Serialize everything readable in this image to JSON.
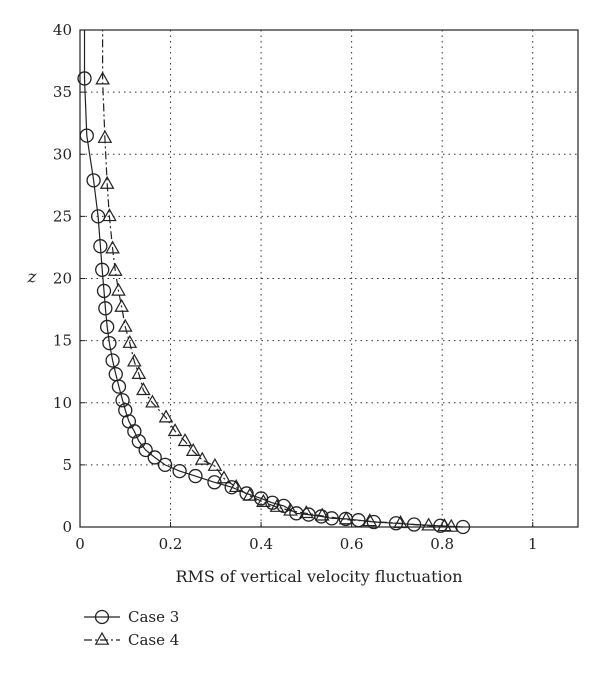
{
  "chart_data": {
    "type": "line",
    "title": "",
    "xlabel": "RMS of vertical velocity fluctuation",
    "ylabel": "z",
    "xlim": [
      0,
      1.1
    ],
    "ylim": [
      0,
      40
    ],
    "xticks": [
      0,
      0.2,
      0.4,
      0.6,
      0.8,
      1
    ],
    "xtick_labels": [
      "0",
      "0.2",
      "0.4",
      "0.6",
      "0.8",
      "1"
    ],
    "yticks": [
      0,
      5,
      10,
      15,
      20,
      25,
      30,
      35,
      40
    ],
    "ytick_labels": [
      "0",
      "5",
      "10",
      "15",
      "20",
      "25",
      "30",
      "35",
      "40"
    ],
    "grid": true,
    "legend_position": "below-left",
    "series": [
      {
        "name": "Case 3",
        "marker": "circle",
        "line_style": "solid",
        "color": "#222222",
        "x": [
          0.846,
          0.796,
          0.738,
          0.698,
          0.649,
          0.615,
          0.587,
          0.556,
          0.533,
          0.505,
          0.478,
          0.45,
          0.425,
          0.4,
          0.368,
          0.335,
          0.297,
          0.255,
          0.22,
          0.188,
          0.165,
          0.145,
          0.13,
          0.12,
          0.108,
          0.1,
          0.094,
          0.086,
          0.079,
          0.072,
          0.065,
          0.06,
          0.056,
          0.053,
          0.049,
          0.045,
          0.04,
          0.03,
          0.015,
          0.01
        ],
        "y": [
          0,
          0.1,
          0.2,
          0.3,
          0.4,
          0.55,
          0.65,
          0.7,
          0.85,
          1.0,
          1.1,
          1.7,
          1.95,
          2.3,
          2.7,
          3.2,
          3.6,
          4.1,
          4.5,
          5.0,
          5.6,
          6.2,
          6.9,
          7.7,
          8.5,
          9.4,
          10.2,
          11.3,
          12.3,
          13.4,
          14.8,
          16.1,
          17.6,
          19.0,
          20.7,
          22.6,
          25.0,
          27.9,
          31.5,
          36.1
        ]
      },
      {
        "name": "Case 4",
        "marker": "triangle",
        "line_style": "dashed",
        "color": "#222222",
        "x": [
          0.82,
          0.805,
          0.77,
          0.708,
          0.64,
          0.588,
          0.535,
          0.5,
          0.465,
          0.435,
          0.405,
          0.375,
          0.345,
          0.318,
          0.298,
          0.27,
          0.25,
          0.232,
          0.21,
          0.19,
          0.16,
          0.14,
          0.13,
          0.12,
          0.11,
          0.1,
          0.092,
          0.085,
          0.078,
          0.072,
          0.065,
          0.06,
          0.055,
          0.05
        ],
        "y": [
          0,
          0.05,
          0.1,
          0.3,
          0.45,
          0.6,
          0.9,
          1.1,
          1.3,
          1.6,
          2.0,
          2.5,
          3.2,
          3.9,
          4.9,
          5.4,
          6.1,
          6.9,
          7.7,
          8.8,
          10.0,
          11.0,
          12.3,
          13.3,
          14.8,
          16.1,
          17.7,
          19.0,
          20.6,
          22.4,
          25.0,
          27.6,
          31.3,
          36.0
        ]
      }
    ]
  }
}
